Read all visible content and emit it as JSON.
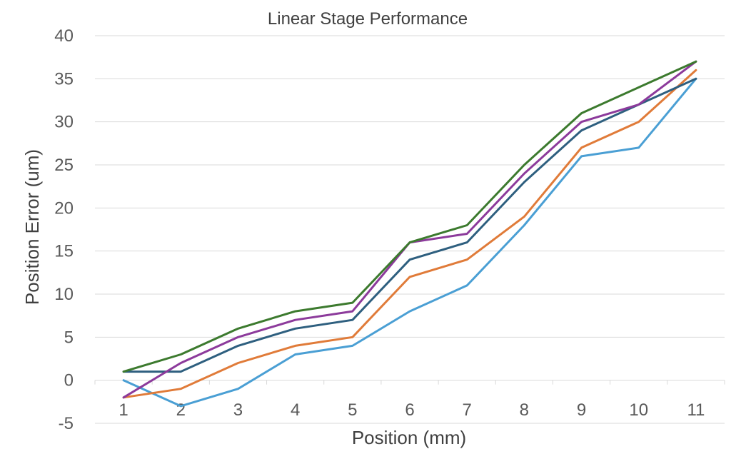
{
  "chart_data": {
    "type": "line",
    "title": "Linear Stage Performance",
    "xlabel": "Position (mm)",
    "ylabel": "Position Error (um)",
    "categories": [
      "1",
      "2",
      "3",
      "4",
      "5",
      "6",
      "7",
      "8",
      "9",
      "10",
      "11"
    ],
    "ylim": [
      -5,
      40
    ],
    "yticks": [
      -5,
      0,
      5,
      10,
      15,
      20,
      25,
      30,
      35,
      40
    ],
    "grid": true,
    "legend": "none",
    "series": [
      {
        "color": "#4a9fd4",
        "values": [
          0,
          -3,
          -1,
          3,
          4,
          8,
          11,
          18,
          26,
          27,
          35
        ]
      },
      {
        "color": "#e07b39",
        "values": [
          -2,
          -1,
          2,
          4,
          5,
          12,
          14,
          19,
          27,
          30,
          36
        ]
      },
      {
        "color": "#2e5f7f",
        "values": [
          1,
          1,
          4,
          6,
          7,
          14,
          16,
          23,
          29,
          32,
          35
        ]
      },
      {
        "color": "#8c3a9b",
        "values": [
          -2,
          2,
          5,
          7,
          8,
          16,
          17,
          24,
          30,
          32,
          37
        ]
      },
      {
        "color": "#3c7a2e",
        "values": [
          1,
          3,
          6,
          8,
          9,
          16,
          18,
          25,
          31,
          34,
          37
        ]
      }
    ]
  }
}
